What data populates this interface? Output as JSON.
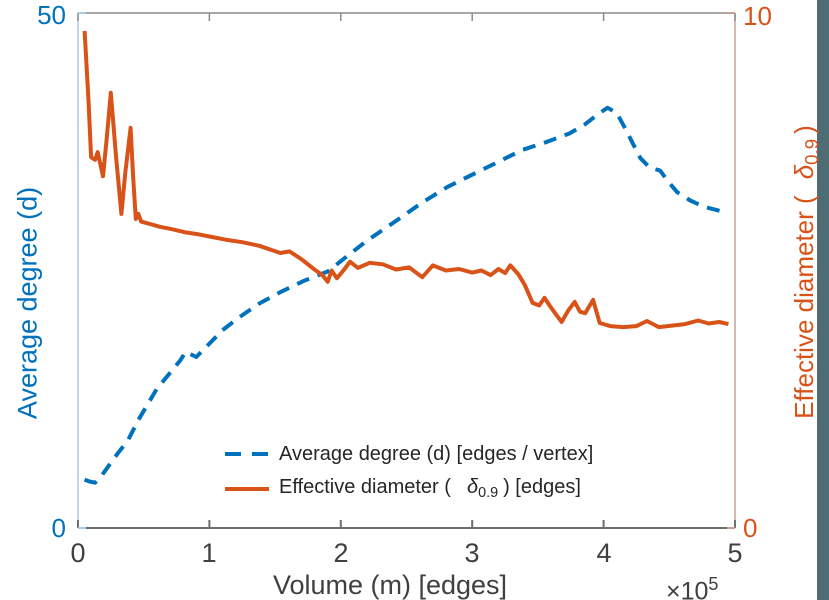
{
  "figure": {
    "background": "#ffffff",
    "side_band_color": "#4e6c74",
    "colors": {
      "blue": "#0072BD",
      "orange": "#D95319",
      "left_spine": "#a9cce6",
      "right_spine": "#c8a094",
      "top_spine": "#8c8c8c",
      "bottom_spine": "#6e6e6e",
      "tick_label": "#404040",
      "legend_text": "#262626"
    }
  },
  "chart_data": {
    "type": "line",
    "title": "",
    "xlabel": "Volume (m) [edges]",
    "x_scale_base": "×10",
    "x_scale_exp": "5",
    "xlim": [
      0,
      5
    ],
    "x_ticks": [
      "0",
      "1",
      "2",
      "3",
      "4",
      "5"
    ],
    "grid": false,
    "legend_position": "inside-bottom-center",
    "left_axis": {
      "label": "Average degree (d)",
      "color": "#0072BD",
      "ylim": [
        0,
        50
      ],
      "tick_labels": [
        "0",
        "50"
      ]
    },
    "right_axis": {
      "label_prefix": "Effective diameter (",
      "label_delta": "δ",
      "label_subscript": "0.9",
      "label_suffix": ")",
      "color": "#D95319",
      "ylim": [
        0,
        10
      ],
      "tick_labels": [
        "0",
        "10"
      ]
    },
    "series": [
      {
        "name": "Average degree (d) [edges / vertex]",
        "axis": "left",
        "style": "dashed",
        "color": "#0072BD",
        "points": [
          [
            0.05,
            4.7
          ],
          [
            0.09,
            4.5
          ],
          [
            0.13,
            4.4
          ],
          [
            0.18,
            5.1
          ],
          [
            0.22,
            5.8
          ],
          [
            0.3,
            7.2
          ],
          [
            0.38,
            8.5
          ],
          [
            0.46,
            10.5
          ],
          [
            0.53,
            12.0
          ],
          [
            0.6,
            13.5
          ],
          [
            0.69,
            14.9
          ],
          [
            0.78,
            16.3
          ],
          [
            0.82,
            17.1
          ],
          [
            0.9,
            16.6
          ],
          [
            1.0,
            17.9
          ],
          [
            1.1,
            19.2
          ],
          [
            1.22,
            20.4
          ],
          [
            1.38,
            21.8
          ],
          [
            1.54,
            22.9
          ],
          [
            1.72,
            24.0
          ],
          [
            1.9,
            24.9
          ],
          [
            2.03,
            26.2
          ],
          [
            2.2,
            27.9
          ],
          [
            2.43,
            29.9
          ],
          [
            2.62,
            31.6
          ],
          [
            2.81,
            33.1
          ],
          [
            3.0,
            34.3
          ],
          [
            3.19,
            35.5
          ],
          [
            3.38,
            36.7
          ],
          [
            3.57,
            37.5
          ],
          [
            3.74,
            38.3
          ],
          [
            3.86,
            39.2
          ],
          [
            3.96,
            40.2
          ],
          [
            4.03,
            40.8
          ],
          [
            4.1,
            40.3
          ],
          [
            4.16,
            38.9
          ],
          [
            4.22,
            37.4
          ],
          [
            4.28,
            35.9
          ],
          [
            4.35,
            35.0
          ],
          [
            4.43,
            34.7
          ],
          [
            4.5,
            33.5
          ],
          [
            4.56,
            32.6
          ],
          [
            4.66,
            31.8
          ],
          [
            4.76,
            31.2
          ],
          [
            4.85,
            30.9
          ],
          [
            4.94,
            30.6
          ]
        ]
      },
      {
        "name": "Effective diameter ( δ0.9 ) [edges]",
        "axis": "right",
        "style": "solid",
        "color": "#D95319",
        "points": [
          [
            0.05,
            9.65
          ],
          [
            0.08,
            8.3
          ],
          [
            0.1,
            7.2
          ],
          [
            0.13,
            7.15
          ],
          [
            0.15,
            7.3
          ],
          [
            0.19,
            6.83
          ],
          [
            0.22,
            7.6
          ],
          [
            0.25,
            8.45
          ],
          [
            0.29,
            7.2
          ],
          [
            0.33,
            6.1
          ],
          [
            0.36,
            6.9
          ],
          [
            0.4,
            7.77
          ],
          [
            0.42,
            6.8
          ],
          [
            0.44,
            6.0
          ],
          [
            0.46,
            6.1
          ],
          [
            0.48,
            5.95
          ],
          [
            0.55,
            5.9
          ],
          [
            0.62,
            5.85
          ],
          [
            0.72,
            5.8
          ],
          [
            0.82,
            5.74
          ],
          [
            0.92,
            5.7
          ],
          [
            1.02,
            5.65
          ],
          [
            1.12,
            5.6
          ],
          [
            1.25,
            5.55
          ],
          [
            1.38,
            5.48
          ],
          [
            1.47,
            5.4
          ],
          [
            1.54,
            5.34
          ],
          [
            1.61,
            5.37
          ],
          [
            1.7,
            5.22
          ],
          [
            1.8,
            5.02
          ],
          [
            1.86,
            4.91
          ],
          [
            1.9,
            4.78
          ],
          [
            1.93,
            5.0
          ],
          [
            1.97,
            4.85
          ],
          [
            2.02,
            5.0
          ],
          [
            2.07,
            5.17
          ],
          [
            2.13,
            5.05
          ],
          [
            2.22,
            5.15
          ],
          [
            2.32,
            5.12
          ],
          [
            2.42,
            5.02
          ],
          [
            2.52,
            5.06
          ],
          [
            2.62,
            4.87
          ],
          [
            2.7,
            5.1
          ],
          [
            2.8,
            5.0
          ],
          [
            2.9,
            5.03
          ],
          [
            3.0,
            4.96
          ],
          [
            3.07,
            5.0
          ],
          [
            3.14,
            4.91
          ],
          [
            3.2,
            5.03
          ],
          [
            3.25,
            4.95
          ],
          [
            3.29,
            5.1
          ],
          [
            3.35,
            4.93
          ],
          [
            3.4,
            4.72
          ],
          [
            3.46,
            4.37
          ],
          [
            3.51,
            4.32
          ],
          [
            3.55,
            4.47
          ],
          [
            3.6,
            4.28
          ],
          [
            3.68,
            4.0
          ],
          [
            3.73,
            4.22
          ],
          [
            3.78,
            4.39
          ],
          [
            3.82,
            4.2
          ],
          [
            3.86,
            4.17
          ],
          [
            3.92,
            4.43
          ],
          [
            3.97,
            3.98
          ],
          [
            4.05,
            3.92
          ],
          [
            4.15,
            3.9
          ],
          [
            4.25,
            3.92
          ],
          [
            4.33,
            4.02
          ],
          [
            4.42,
            3.9
          ],
          [
            4.52,
            3.93
          ],
          [
            4.62,
            3.96
          ],
          [
            4.72,
            4.03
          ],
          [
            4.8,
            3.97
          ],
          [
            4.88,
            4.0
          ],
          [
            4.95,
            3.96
          ]
        ]
      }
    ],
    "legend": {
      "entries": [
        {
          "label": "Average degree (d) [edges / vertex]",
          "swatch": "dashed-blue"
        },
        {
          "label_prefix": "Effective diameter (",
          "delta": "δ",
          "subscript": "0.9",
          "label_suffix": ") [edges]",
          "swatch": "solid-orange"
        }
      ]
    }
  }
}
